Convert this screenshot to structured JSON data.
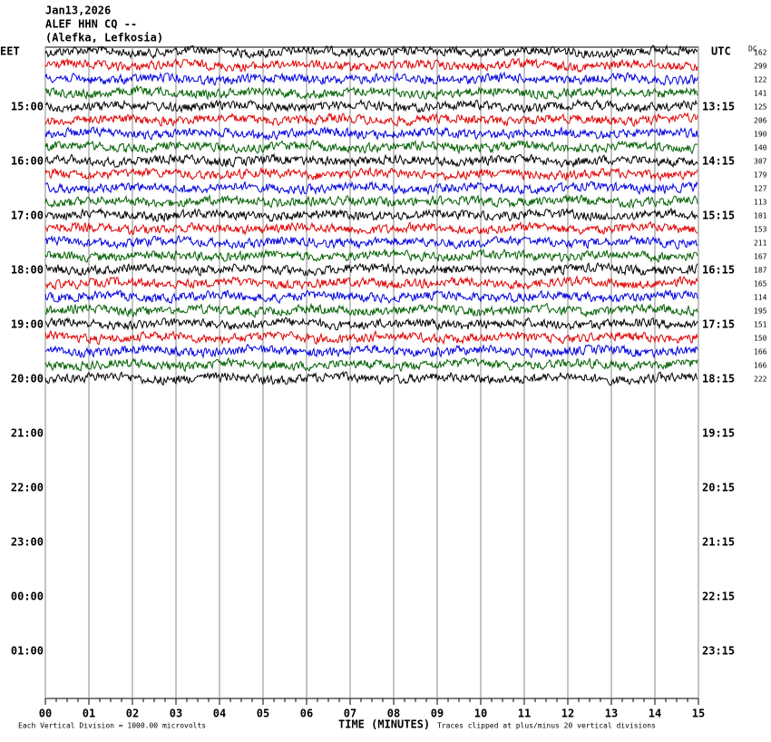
{
  "header": {
    "date": "Jan13,2026",
    "station": "ALEF HHN CQ --",
    "location": "(Alefka, Lefkosia)"
  },
  "left_axis": {
    "title": "EET",
    "labels": [
      "15:00",
      "16:00",
      "17:00",
      "18:00",
      "19:00",
      "20:00",
      "21:00",
      "22:00",
      "23:00",
      "00:00",
      "01:00"
    ]
  },
  "right_axis": {
    "title": "UTC",
    "labels": [
      "13:15",
      "14:15",
      "15:15",
      "16:15",
      "17:15",
      "18:15",
      "19:15",
      "20:15",
      "21:15",
      "22:15",
      "23:15"
    ]
  },
  "dc_title": "DC",
  "traces": {
    "colors": [
      "#000000",
      "#e00000",
      "#0000e0",
      "#006000"
    ],
    "dc": [
      "162",
      "299",
      "122",
      "141",
      "125",
      "206",
      "190",
      "140",
      "307",
      "179",
      "127",
      "113",
      "101",
      "153",
      "211",
      "167",
      "187",
      "165",
      "114",
      "195",
      "151",
      "150",
      "166",
      "166",
      "222"
    ]
  },
  "x_axis": {
    "title": "TIME (MINUTES)",
    "labels": [
      "00",
      "01",
      "02",
      "03",
      "04",
      "05",
      "06",
      "07",
      "08",
      "09",
      "10",
      "11",
      "12",
      "13",
      "14",
      "15"
    ]
  },
  "footer": {
    "scale": "Each Vertical Division = 1000.00 microvolts",
    "clip": "Traces clipped at plus/minus 20 vertical divisions"
  }
}
